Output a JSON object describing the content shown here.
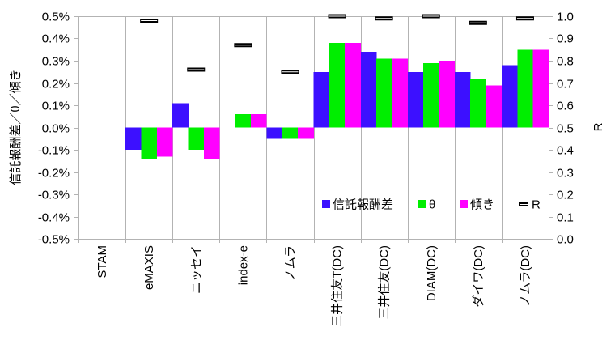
{
  "chart_data": {
    "type": "bar",
    "ylabel": "信託報酬差／θ／傾き",
    "y2label": "R",
    "categories": [
      "STAM",
      "eMAXIS",
      "ニッセイ",
      "index-e",
      "ノムラ",
      "三井住友T(DC)",
      "三井住友(DC)",
      "DIAM(DC)",
      "ダイワ(DC)",
      "ノムラ(DC)"
    ],
    "ylim": [
      -0.5,
      0.5
    ],
    "y2lim": [
      0.0,
      1.0
    ],
    "y_ticks": [
      {
        "value": 0.5,
        "label": "0.5%"
      },
      {
        "value": 0.4,
        "label": "0.4%"
      },
      {
        "value": 0.3,
        "label": "0.3%"
      },
      {
        "value": 0.2,
        "label": "0.2%"
      },
      {
        "value": 0.1,
        "label": "0.1%"
      },
      {
        "value": 0.0,
        "label": "0.0%"
      },
      {
        "value": -0.1,
        "label": "-0.1%"
      },
      {
        "value": -0.2,
        "label": "-0.2%"
      },
      {
        "value": -0.3,
        "label": "-0.3%"
      },
      {
        "value": -0.4,
        "label": "-0.4%"
      },
      {
        "value": -0.5,
        "label": "-0.5%"
      }
    ],
    "y2_ticks": [
      {
        "value": 1.0,
        "label": "1.0"
      },
      {
        "value": 0.9,
        "label": "0.9"
      },
      {
        "value": 0.8,
        "label": "0.8"
      },
      {
        "value": 0.7,
        "label": "0.7"
      },
      {
        "value": 0.6,
        "label": "0.6"
      },
      {
        "value": 0.5,
        "label": "0.5"
      },
      {
        "value": 0.4,
        "label": "0.4"
      },
      {
        "value": 0.3,
        "label": "0.3"
      },
      {
        "value": 0.2,
        "label": "0.2"
      },
      {
        "value": 0.1,
        "label": "0.1"
      },
      {
        "value": 0.0,
        "label": "0.0"
      }
    ],
    "series": [
      {
        "name": "信託報酬差",
        "kind": "bar",
        "axis": "left",
        "color": "#3c10ff",
        "values": [
          null,
          -0.1,
          0.11,
          0.0,
          -0.05,
          0.25,
          0.34,
          0.25,
          0.25,
          0.28
        ]
      },
      {
        "name": "θ",
        "kind": "bar",
        "axis": "left",
        "color": "#00ee00",
        "values": [
          null,
          -0.14,
          -0.1,
          0.06,
          -0.05,
          0.38,
          0.31,
          0.29,
          0.22,
          0.35
        ]
      },
      {
        "name": "傾き",
        "kind": "bar",
        "axis": "left",
        "color": "#ff00ff",
        "values": [
          null,
          -0.13,
          -0.14,
          0.06,
          -0.05,
          0.38,
          0.31,
          0.3,
          0.19,
          0.35
        ]
      },
      {
        "name": "R",
        "kind": "marker",
        "axis": "right",
        "color": "#000000",
        "values": [
          null,
          0.98,
          0.76,
          0.87,
          0.75,
          1.0,
          0.99,
          1.0,
          0.97,
          0.99
        ]
      }
    ],
    "legend": "bottom-right",
    "grid": {
      "vertical": true,
      "horizontal": false
    }
  }
}
